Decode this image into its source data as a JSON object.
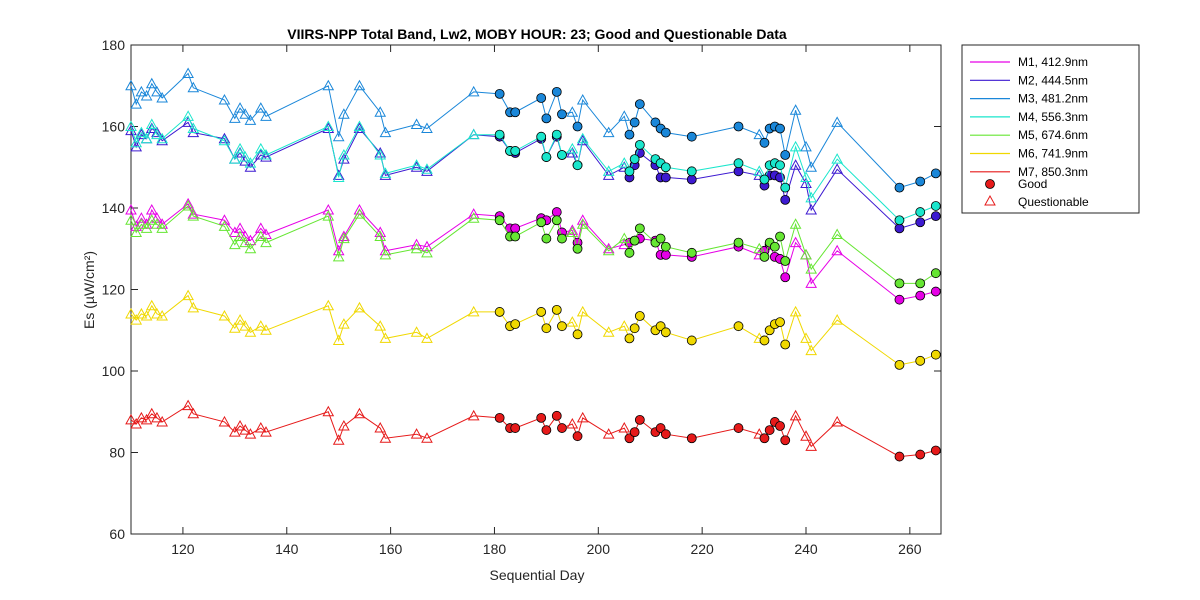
{
  "chart_data": {
    "type": "line",
    "title": "VIIRS-NPP Total Band,  Lw2, MOBY HOUR: 23;  Good and Questionable Data",
    "xlabel": "Sequential Day",
    "ylabel": "Es (µW/cm²)",
    "xlim": [
      110,
      266
    ],
    "ylim": [
      60,
      180
    ],
    "xticks": [
      120,
      140,
      160,
      180,
      200,
      220,
      240,
      260
    ],
    "yticks": [
      60,
      80,
      100,
      120,
      140,
      160,
      180
    ],
    "grid": false,
    "legend_position": "outside-top-right",
    "x": [
      110,
      111,
      112,
      113,
      114,
      115,
      116,
      121,
      122,
      128,
      130,
      131,
      132,
      133,
      135,
      136,
      148,
      150,
      151,
      154,
      158,
      159,
      165,
      167,
      176,
      181,
      183,
      184,
      189,
      190,
      192,
      193,
      195,
      196,
      197,
      202,
      205,
      206,
      207,
      208,
      211,
      212,
      213,
      218,
      227,
      231,
      232,
      233,
      234,
      235,
      236,
      238,
      240,
      241,
      246,
      258,
      262,
      265
    ],
    "quality": [
      "Q",
      "Q",
      "Q",
      "Q",
      "Q",
      "Q",
      "Q",
      "Q",
      "Q",
      "Q",
      "Q",
      "Q",
      "Q",
      "Q",
      "Q",
      "Q",
      "Q",
      "Q",
      "Q",
      "Q",
      "Q",
      "Q",
      "Q",
      "Q",
      "Q",
      "G",
      "G",
      "G",
      "G",
      "G",
      "G",
      "G",
      "Q",
      "G",
      "Q",
      "Q",
      "Q",
      "G",
      "G",
      "G",
      "G",
      "G",
      "G",
      "G",
      "G",
      "Q",
      "G",
      "G",
      "G",
      "G",
      "G",
      "Q",
      "Q",
      "Q",
      "Q",
      "G",
      "G",
      "G"
    ],
    "series": [
      {
        "name": "M1, 412.9nm",
        "color": "#e600e6",
        "values": [
          139.5,
          135.5,
          137.5,
          136,
          139.5,
          137.5,
          136,
          141,
          138.5,
          137,
          134,
          135,
          133,
          132,
          135,
          133.5,
          139.5,
          129.5,
          133,
          139.5,
          134,
          129.5,
          131,
          130.5,
          138.5,
          138,
          135,
          135,
          137.5,
          137,
          139,
          134,
          134.5,
          131.5,
          137,
          130,
          131,
          131.5,
          132,
          132.5,
          132,
          128.5,
          128.5,
          128,
          130.5,
          128.5,
          129.5,
          131,
          128,
          127.5,
          123,
          131.5,
          128.5,
          121.5,
          129.5,
          117.5,
          118.5,
          119.5
        ]
      },
      {
        "name": "M2, 444.5nm",
        "color": "#3d1ad1",
        "values": [
          159,
          155,
          158,
          157,
          159.5,
          158.5,
          156.5,
          161,
          158.5,
          157,
          152,
          153.5,
          151.5,
          150,
          153,
          152.5,
          159.5,
          148,
          152,
          159.5,
          153.5,
          148,
          150,
          149,
          158,
          157.5,
          154,
          153.5,
          157,
          152.5,
          157.5,
          153,
          153.5,
          150.5,
          156.5,
          148,
          150,
          147.5,
          150.5,
          153.5,
          150.5,
          147.5,
          147.5,
          147,
          149,
          148,
          145.5,
          148,
          148,
          147.5,
          142,
          150.5,
          146,
          139.5,
          149.5,
          135,
          136.5,
          138
        ]
      },
      {
        "name": "M3, 481.2nm",
        "color": "#1a87d9",
        "values": [
          170,
          165.5,
          168.5,
          167.5,
          170.5,
          168.5,
          167,
          173,
          169.5,
          166.5,
          162,
          164.5,
          163,
          161.5,
          164.5,
          162.5,
          170,
          157.5,
          163,
          170,
          163.5,
          158.5,
          160.5,
          159.5,
          168.5,
          168,
          163.5,
          163.5,
          167,
          162,
          168.5,
          163,
          163.5,
          160,
          166.5,
          158.5,
          162.5,
          158,
          161,
          165.5,
          161,
          159.5,
          158.5,
          157.5,
          160,
          158,
          156,
          159.5,
          160,
          159.5,
          153,
          164,
          155,
          150,
          161,
          145,
          146.5,
          148.5
        ]
      },
      {
        "name": "M4, 556.3nm",
        "color": "#1ae6cc",
        "values": [
          160,
          156,
          158.5,
          157,
          160.5,
          158,
          157,
          162.5,
          159.5,
          156.5,
          152,
          154.5,
          152.5,
          151,
          154.5,
          153,
          160,
          147.5,
          153,
          160,
          153,
          148.5,
          150.5,
          149.5,
          158,
          158,
          154,
          154,
          157.5,
          152.5,
          158,
          153,
          154.5,
          150.5,
          157,
          149,
          151,
          149,
          152,
          155.5,
          152,
          151,
          150,
          149,
          151,
          149,
          147,
          150.5,
          151,
          150.5,
          145,
          155,
          147.5,
          142.5,
          152,
          137,
          139,
          140.5
        ]
      },
      {
        "name": "M5, 674.6nm",
        "color": "#66e633",
        "values": [
          137,
          134,
          136,
          135,
          137,
          136,
          135,
          140.5,
          138,
          135.5,
          131,
          133,
          131.5,
          130,
          133,
          131.5,
          138,
          128,
          132.5,
          138.5,
          133,
          128.5,
          130,
          129,
          137.5,
          137,
          133,
          133,
          136.5,
          132.5,
          137,
          132.5,
          134,
          130,
          136,
          129.5,
          132.5,
          129,
          132,
          135,
          131.5,
          132.5,
          130.5,
          129,
          131.5,
          130,
          128,
          131.5,
          130.5,
          133,
          127,
          136,
          128.5,
          125,
          133.5,
          121.5,
          121.5,
          124
        ]
      },
      {
        "name": "M6, 741.9nm",
        "color": "#f0d800",
        "values": [
          114,
          112.5,
          114,
          113.5,
          116,
          114,
          113.5,
          118.5,
          115.5,
          113.5,
          110.5,
          112.5,
          111,
          109.5,
          111,
          110,
          116,
          107.5,
          111.5,
          115.5,
          111,
          108,
          109.5,
          108,
          114.5,
          114.5,
          111,
          111.5,
          114.5,
          110.5,
          115,
          111,
          112,
          109,
          114.5,
          109.5,
          111,
          108,
          110.5,
          113.5,
          110,
          111,
          109.5,
          107.5,
          111,
          108,
          107.5,
          110,
          111.5,
          112,
          106.5,
          114.5,
          108,
          105,
          112.5,
          101.5,
          102.5,
          104
        ]
      },
      {
        "name": "M7, 850.3nm",
        "color": "#e61a1a",
        "values": [
          88,
          87,
          88.5,
          88,
          89.5,
          88.5,
          87.5,
          91.5,
          89.5,
          87.5,
          85,
          86.5,
          85.5,
          84.5,
          86,
          85,
          90,
          83,
          86.5,
          89.5,
          86,
          83.5,
          84.5,
          83.5,
          89,
          88.5,
          86,
          86,
          88.5,
          85.5,
          89,
          86,
          87,
          84,
          88.5,
          84.5,
          86,
          83.5,
          85,
          88,
          85,
          86,
          84.5,
          83.5,
          86,
          84.5,
          83.5,
          85.5,
          87.5,
          86.5,
          83,
          89,
          84,
          81.5,
          87.5,
          79,
          79.5,
          80.5
        ]
      }
    ],
    "legend": {
      "entries": [
        "M1, 412.9nm",
        "M2, 444.5nm",
        "M3, 481.2nm",
        "M4, 556.3nm",
        "M5, 674.6nm",
        "M6, 741.9nm",
        "M7, 850.3nm"
      ],
      "good_label": "Good",
      "questionable_label": "Questionable",
      "good_marker": "filled-circle",
      "questionable_marker": "open-triangle"
    }
  }
}
